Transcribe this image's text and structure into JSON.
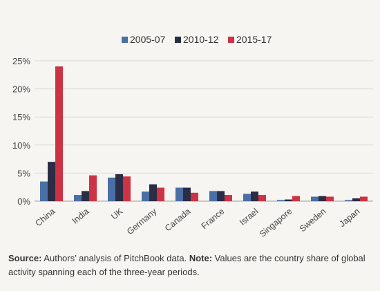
{
  "chart_data": {
    "type": "bar",
    "categories": [
      "China",
      "India",
      "UK",
      "Germany",
      "Canada",
      "France",
      "Israel",
      "Singapore",
      "Sweden",
      "Japan"
    ],
    "series": [
      {
        "name": "2005-07",
        "color": "#4a6fa5",
        "values": [
          3.5,
          1.1,
          4.2,
          1.7,
          2.4,
          1.8,
          1.3,
          0.2,
          0.8,
          0.2
        ]
      },
      {
        "name": "2010-12",
        "color": "#2b2d45",
        "values": [
          7.0,
          1.8,
          4.8,
          3.0,
          2.4,
          1.8,
          1.7,
          0.3,
          0.9,
          0.5
        ]
      },
      {
        "name": "2015-17",
        "color": "#cc3344",
        "values": [
          24.0,
          4.6,
          4.4,
          2.4,
          1.5,
          1.1,
          1.1,
          0.9,
          0.8,
          0.8
        ]
      }
    ],
    "ylim": [
      0,
      25
    ],
    "yticks": [
      "0%",
      "5%",
      "10%",
      "15%",
      "20%",
      "25%"
    ],
    "grid": true,
    "legend_position": "top-center"
  },
  "caption": {
    "source_label": "Source:",
    "source_text": " Authors’ analysis of PitchBook data.  ",
    "note_label": "Note:",
    "note_text": " Values are the country share of global activity spanning each of the three-year periods."
  }
}
